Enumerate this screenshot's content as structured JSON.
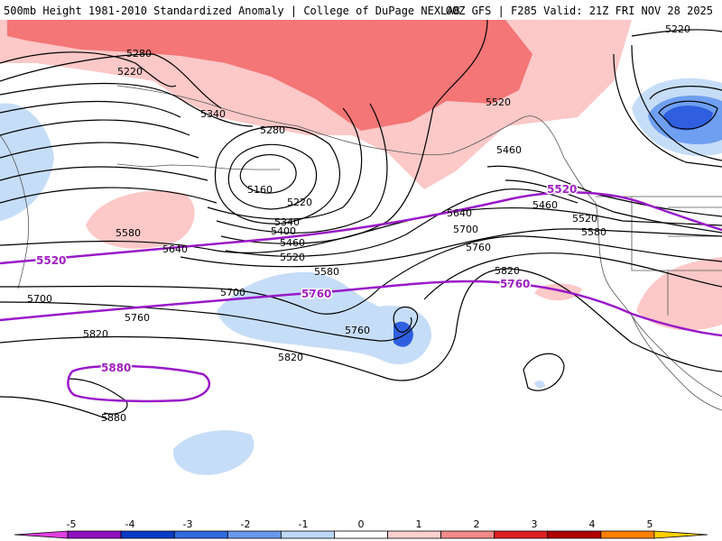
{
  "header": {
    "left": "500mb Height 1981-2010 Standardized Anomaly | College of DuPage NEXLAB",
    "right": "00Z GFS | F285 Valid: 21Z FRI NOV 28 2025"
  },
  "contour_labels": {
    "c5280a": "5280",
    "c5220a": "5220",
    "c5340a": "5340",
    "c5280b": "5280",
    "c5160": "5160",
    "c5220b": "5220",
    "c5340b": "5340",
    "c5400": "5400",
    "c5460a": "5460",
    "c5520a": "5520",
    "c5580a": "5580",
    "c5580b": "5580",
    "c5640a": "5640",
    "c5700a": "5700",
    "c5700b": "5700",
    "c5760a": "5760",
    "c5760b": "5760",
    "c5820a": "5820",
    "c5820b": "5820",
    "c5820c": "5820",
    "c5880": "5880",
    "c5520b": "5520",
    "c5460b": "5460",
    "c5460c": "5460",
    "c5520c": "5520",
    "c5580c": "5580",
    "c5640b": "5640",
    "c5700c": "5700",
    "c5760c": "5760",
    "c5220c": "5220"
  },
  "climo_labels": {
    "p5520a": "5520",
    "p5520b": "5520",
    "p5760a": "5760",
    "p5760b": "5760",
    "p5880": "5880"
  },
  "colorbar": {
    "ticks": [
      "-5",
      "-4",
      "-3",
      "-2",
      "-1",
      "0",
      "1",
      "2",
      "3",
      "4",
      "5"
    ],
    "colors": [
      "#e040e0",
      "#9010c0",
      "#0a3cc8",
      "#2f6ae0",
      "#6a98ec",
      "#bcd8f8",
      "#ffffff",
      "#ffd0d0",
      "#f48a8a",
      "#e02020",
      "#b00000",
      "#ff8000",
      "#ffd000"
    ]
  },
  "anomaly_colors": {
    "neg1": "#c6ddf8",
    "neg2": "#6f9ff0",
    "neg3": "#2f5fdf",
    "pos1": "#fcc8c8",
    "pos2": "#f47676"
  }
}
